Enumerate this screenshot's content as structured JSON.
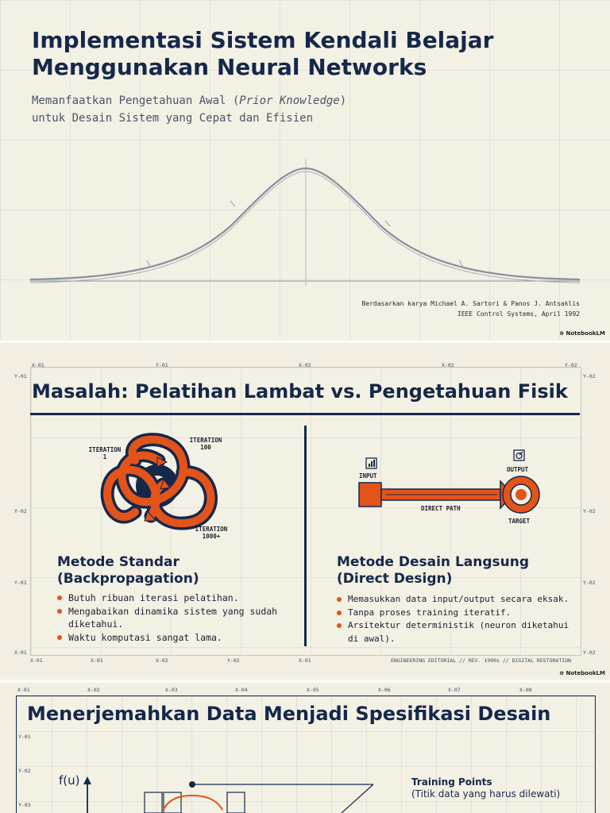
{
  "slide1": {
    "title_line1": "Implementasi Sistem Kendali Belajar",
    "title_line2": "Menggunakan Neural Networks",
    "subtitle_pre": "Memanfaatkan Pengetahuan Awal (",
    "subtitle_italic": "Prior Knowledge",
    "subtitle_post": ")",
    "subtitle_line2": "untuk Desain Sistem yang Cepat dan Efisien",
    "credit_line1": "Berdasarkan karya Michael A. Sartori & Panos J. Antsaklis",
    "credit_line2": "IEEE Control Systems, April 1992",
    "brand": "NotebookLM"
  },
  "slide2": {
    "title": "Masalah: Pelatihan Lambat vs. Pengetahuan Fisik",
    "top_labels": [
      "X-01",
      "Y-01",
      "X-02",
      "X-02",
      "Y-02"
    ],
    "left_labels": [
      "Y-01",
      "Y-02",
      "Y-01",
      "X-01"
    ],
    "right_labels": [
      "Y-02",
      "Y-02",
      "Y-02",
      "Y-02"
    ],
    "bottom_labels": [
      "X-01",
      "X-01",
      "X-02",
      "Y-02",
      "X-01"
    ],
    "footer": "ENGINEERING EDITORIAL // REV. 1990s // DIGITAL RESTORATION",
    "left": {
      "iter1": "ITERATION 1",
      "iter100": "ITERATION 100",
      "iter1000": "ITERATION 1000+",
      "heading1": "Metode Standar",
      "heading2": "(Backpropagation)",
      "bullets": [
        "Butuh ribuan iterasi pelatihan.",
        "Mengabaikan dinamika sistem yang sudah diketahui.",
        "Waktu komputasi sangat lama."
      ]
    },
    "right": {
      "input": "INPUT",
      "output": "OUTPUT",
      "direct_path": "DIRECT PATH",
      "target": "TARGET",
      "heading1": "Metode Desain Langsung",
      "heading2": "(Direct Design)",
      "bullets": [
        "Memasukkan data input/output secara eksak.",
        "Tanpa proses training iteratif.",
        "Arsitektur deterministik (neuron diketahui di awal)."
      ]
    },
    "brand": "NotebookLM"
  },
  "slide3": {
    "title": "Menerjemahkan Data Menjadi Spesifikasi Desain",
    "top_labels": [
      "X-01",
      "X-02",
      "X-03",
      "X-04",
      "X-05",
      "X-06",
      "X-07",
      "X-08"
    ],
    "left_labels": [
      "Y-01",
      "Y-02",
      "Y-03"
    ],
    "axis_label": "f(u)",
    "callout_title": "Training Points",
    "callout_sub": "(Titik data yang harus dilewati)"
  },
  "colors": {
    "navy": "#15284a",
    "orange": "#e3541b",
    "paper": "#f3f0e4"
  }
}
